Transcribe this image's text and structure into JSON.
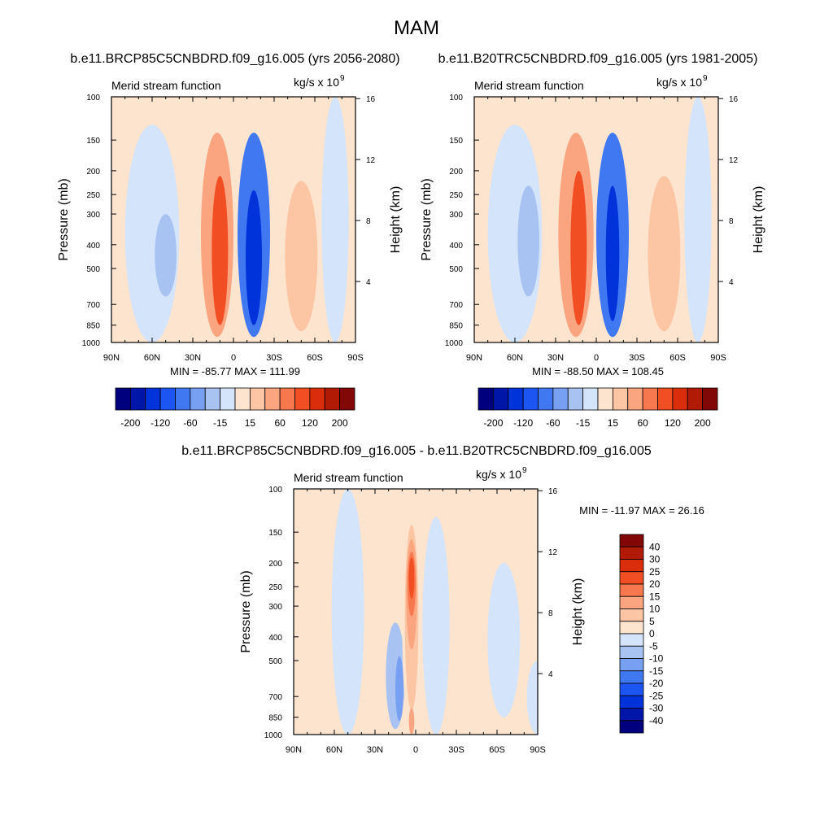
{
  "figure": {
    "season": "MAM",
    "chart_titles": [
      "b.e11.BRCP85C5CNBDRD.f09_g16.005 (yrs 2056-2080)",
      "b.e11.B20TRC5CNBDRD.f09_g16.005 (yrs 1981-2005)",
      "b.e11.BRCP85C5CNBDRD.f09_g16.005 - b.e11.B20TRC5CNBDRD.f09_g16.005"
    ]
  },
  "chart_data": [
    {
      "type": "heatmap",
      "title": "b.e11.BRCP85C5CNBDRD.f09_g16.005 (yrs 2056-2080)",
      "left_subtitle": "Merid stream function",
      "units": "kg/s x 10^9",
      "xlabel": "",
      "ylabel": "Pressure (mb)",
      "ylabel_right": "Height (km)",
      "x_ticks": [
        "90N",
        "60N",
        "30N",
        "0",
        "30S",
        "60S",
        "90S"
      ],
      "x_range": [
        90,
        -90
      ],
      "y_ticks": [
        100,
        150,
        200,
        250,
        300,
        400,
        500,
        700,
        850,
        1000
      ],
      "y_range": [
        100,
        1000
      ],
      "y_scale": "log",
      "right_ticks": [
        16,
        12,
        8,
        4
      ],
      "stats": "MIN = -85.77  MAX = 111.99",
      "min": -85.77,
      "max": 111.99,
      "colorbar": {
        "orientation": "horizontal",
        "labels": [
          "-200",
          "-120",
          "-60",
          "-15",
          "15",
          "60",
          "120",
          "200"
        ],
        "colors": [
          "#00007f",
          "#0016a8",
          "#0033d9",
          "#1c55f2",
          "#4078f2",
          "#78a0f2",
          "#a8c3f2",
          "#d4e4fa",
          "#fde4cf",
          "#fcc6a4",
          "#faa580",
          "#f7784e",
          "#f24e23",
          "#d92d0c",
          "#b11a05",
          "#820808"
        ]
      },
      "cells": [
        {
          "lat": 60,
          "lat_halfwidth": 20,
          "p_top": 130,
          "p_bottom": 1000,
          "level": -1
        },
        {
          "lat": 50,
          "lat_halfwidth": 8,
          "p_top": 300,
          "p_bottom": 650,
          "level": -2
        },
        {
          "lat": 12,
          "lat_halfwidth": 12,
          "p_top": 140,
          "p_bottom": 950,
          "level": 3
        },
        {
          "lat": 10,
          "lat_halfwidth": 6,
          "p_top": 210,
          "p_bottom": 850,
          "level": 5
        },
        {
          "lat": -15,
          "lat_halfwidth": 12,
          "p_top": 140,
          "p_bottom": 950,
          "level": -4
        },
        {
          "lat": -15,
          "lat_halfwidth": 6,
          "p_top": 240,
          "p_bottom": 850,
          "level": -6
        },
        {
          "lat": -50,
          "lat_halfwidth": 12,
          "p_top": 220,
          "p_bottom": 900,
          "level": 2
        },
        {
          "lat": -75,
          "lat_halfwidth": 10,
          "p_top": 100,
          "p_bottom": 1000,
          "level": -1
        }
      ]
    },
    {
      "type": "heatmap",
      "title": "b.e11.B20TRC5CNBDRD.f09_g16.005 (yrs 1981-2005)",
      "left_subtitle": "Merid stream function",
      "units": "kg/s x 10^9",
      "xlabel": "",
      "ylabel": "Pressure (mb)",
      "ylabel_right": "Height (km)",
      "x_ticks": [
        "90N",
        "60N",
        "30N",
        "0",
        "30S",
        "60S",
        "90S"
      ],
      "x_range": [
        90,
        -90
      ],
      "y_ticks": [
        100,
        150,
        200,
        250,
        300,
        400,
        500,
        700,
        850,
        1000
      ],
      "y_range": [
        100,
        1000
      ],
      "y_scale": "log",
      "right_ticks": [
        16,
        12,
        8,
        4
      ],
      "stats": "MIN = -88.50  MAX = 108.45",
      "min": -88.5,
      "max": 108.45,
      "colorbar": {
        "orientation": "horizontal",
        "labels": [
          "-200",
          "-120",
          "-60",
          "-15",
          "15",
          "60",
          "120",
          "200"
        ],
        "colors": [
          "#00007f",
          "#0016a8",
          "#0033d9",
          "#1c55f2",
          "#4078f2",
          "#78a0f2",
          "#a8c3f2",
          "#d4e4fa",
          "#fde4cf",
          "#fcc6a4",
          "#faa580",
          "#f7784e",
          "#f24e23",
          "#d92d0c",
          "#b11a05",
          "#820808"
        ]
      },
      "cells": [
        {
          "lat": 60,
          "lat_halfwidth": 20,
          "p_top": 130,
          "p_bottom": 1000,
          "level": -1
        },
        {
          "lat": 50,
          "lat_halfwidth": 8,
          "p_top": 230,
          "p_bottom": 650,
          "level": -2
        },
        {
          "lat": 15,
          "lat_halfwidth": 13,
          "p_top": 140,
          "p_bottom": 950,
          "level": 3
        },
        {
          "lat": 13,
          "lat_halfwidth": 6,
          "p_top": 200,
          "p_bottom": 850,
          "level": 5
        },
        {
          "lat": -12,
          "lat_halfwidth": 12,
          "p_top": 140,
          "p_bottom": 950,
          "level": -4
        },
        {
          "lat": -12,
          "lat_halfwidth": 5,
          "p_top": 230,
          "p_bottom": 820,
          "level": -6
        },
        {
          "lat": -50,
          "lat_halfwidth": 12,
          "p_top": 210,
          "p_bottom": 900,
          "level": 2
        },
        {
          "lat": -75,
          "lat_halfwidth": 10,
          "p_top": 100,
          "p_bottom": 1000,
          "level": -1
        }
      ]
    },
    {
      "type": "heatmap",
      "title": "b.e11.BRCP85C5CNBDRD.f09_g16.005 - b.e11.B20TRC5CNBDRD.f09_g16.005",
      "left_subtitle": "Merid stream function",
      "units": "kg/s x 10^9",
      "xlabel": "",
      "ylabel": "Pressure (mb)",
      "ylabel_right": "Height (km)",
      "x_ticks": [
        "90N",
        "60N",
        "30N",
        "0",
        "30S",
        "60S",
        "90S"
      ],
      "x_range": [
        90,
        -90
      ],
      "y_ticks": [
        100,
        150,
        200,
        250,
        300,
        400,
        500,
        700,
        850,
        1000
      ],
      "y_range": [
        100,
        1000
      ],
      "y_scale": "log",
      "right_ticks": [
        16,
        12,
        8,
        4
      ],
      "stats": "MIN = -11.97  MAX =  26.16",
      "min": -11.97,
      "max": 26.16,
      "colorbar": {
        "orientation": "vertical",
        "labels": [
          "40",
          "30",
          "25",
          "20",
          "15",
          "10",
          "5",
          "0",
          "-5",
          "-10",
          "-15",
          "-20",
          "-25",
          "-30",
          "-40"
        ],
        "colors": [
          "#820808",
          "#b11a05",
          "#d92d0c",
          "#f24e23",
          "#f7784e",
          "#faa580",
          "#fcc6a4",
          "#fde4cf",
          "#d4e4fa",
          "#a8c3f2",
          "#78a0f2",
          "#4078f2",
          "#1c55f2",
          "#0033d9",
          "#0016a8",
          "#00007f"
        ]
      },
      "cells": [
        {
          "lat": 50,
          "lat_halfwidth": 12,
          "p_top": 100,
          "p_bottom": 1000,
          "level": -1
        },
        {
          "lat": -15,
          "lat_halfwidth": 10,
          "p_top": 130,
          "p_bottom": 1000,
          "level": -1
        },
        {
          "lat": -65,
          "lat_halfwidth": 12,
          "p_top": 200,
          "p_bottom": 850,
          "level": -1
        },
        {
          "lat": -90,
          "lat_halfwidth": 8,
          "p_top": 500,
          "p_bottom": 1000,
          "level": -1
        },
        {
          "lat": 15,
          "lat_halfwidth": 7,
          "p_top": 350,
          "p_bottom": 950,
          "level": -2
        },
        {
          "lat": 12,
          "lat_halfwidth": 3,
          "p_top": 480,
          "p_bottom": 880,
          "level": -3
        },
        {
          "lat": 3,
          "lat_halfwidth": 7,
          "p_top": 120,
          "p_bottom": 1000,
          "level": 1
        },
        {
          "lat": 3,
          "lat_halfwidth": 5,
          "p_top": 140,
          "p_bottom": 800,
          "level": 2
        },
        {
          "lat": 3,
          "lat_halfwidth": 4,
          "p_top": 160,
          "p_bottom": 450,
          "level": 3
        },
        {
          "lat": 3,
          "lat_halfwidth": 3,
          "p_top": 180,
          "p_bottom": 330,
          "level": 4
        },
        {
          "lat": 3,
          "lat_halfwidth": 2,
          "p_top": 190,
          "p_bottom": 280,
          "level": 5
        },
        {
          "lat": 3,
          "lat_halfwidth": 2,
          "p_top": 780,
          "p_bottom": 1000,
          "level": 3
        }
      ]
    }
  ]
}
